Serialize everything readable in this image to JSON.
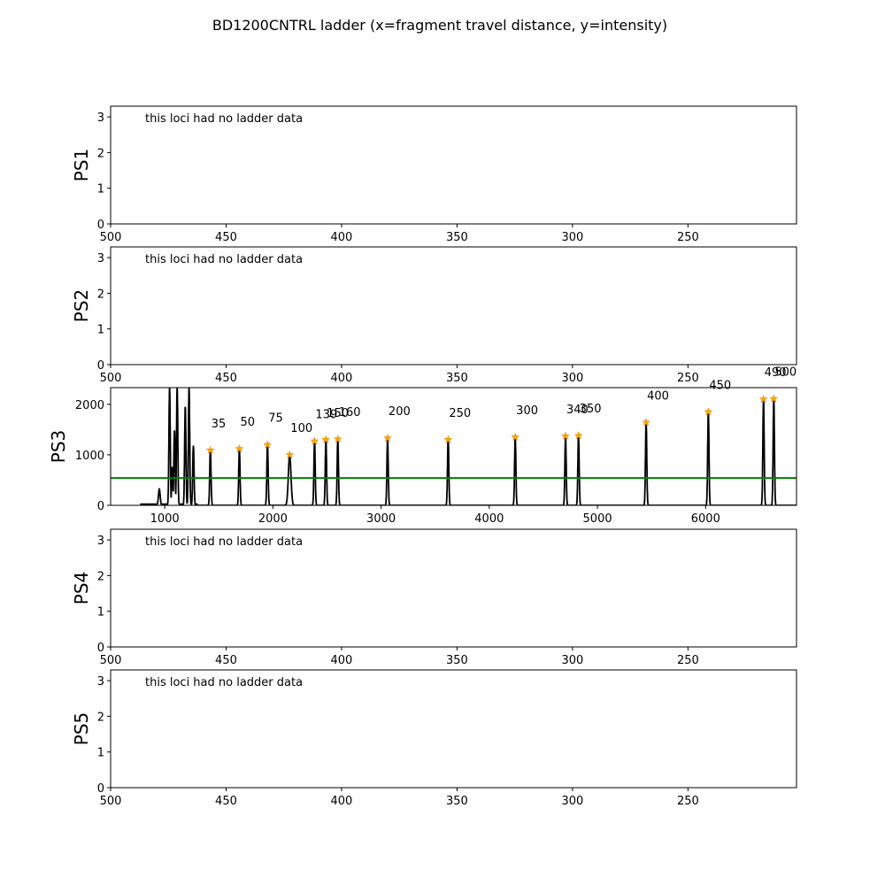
{
  "figure": {
    "title": "BD1200CNTRL ladder (x=fragment travel distance, y=intensity)"
  },
  "chart_data": [
    {
      "type": "line",
      "name": "PS1",
      "ylabel": "PS1",
      "empty": true,
      "annotation": "this loci had no ladder data",
      "xlim": [
        500,
        203
      ],
      "ylim": [
        0,
        3.3
      ],
      "xticks": [
        500,
        450,
        400,
        350,
        300,
        250
      ],
      "yticks": [
        0,
        1,
        2,
        3
      ]
    },
    {
      "type": "line",
      "name": "PS2",
      "ylabel": "PS2",
      "empty": true,
      "annotation": "this loci had no ladder data",
      "xlim": [
        500,
        203
      ],
      "ylim": [
        0,
        3.3
      ],
      "xticks": [
        500,
        450,
        400,
        350,
        300,
        250
      ],
      "yticks": [
        0,
        1,
        2,
        3
      ]
    },
    {
      "type": "line",
      "name": "PS3",
      "ylabel": "PS3",
      "empty": false,
      "xlim": [
        500,
        6840
      ],
      "ylim": [
        0,
        2330
      ],
      "xticks": [
        1000,
        2000,
        3000,
        4000,
        5000,
        6000
      ],
      "yticks": [
        0,
        1000,
        2000
      ],
      "threshold": 540,
      "peaks": [
        {
          "x": 1422,
          "y": 1090,
          "label": "35"
        },
        {
          "x": 1690,
          "y": 1120,
          "label": "50"
        },
        {
          "x": 1950,
          "y": 1200,
          "label": "75"
        },
        {
          "x": 2155,
          "y": 1000,
          "label": "100"
        },
        {
          "x": 2385,
          "y": 1270,
          "label": "139"
        },
        {
          "x": 2490,
          "y": 1300,
          "label": "150"
        },
        {
          "x": 2600,
          "y": 1310,
          "label": "160"
        },
        {
          "x": 3060,
          "y": 1330,
          "label": "200"
        },
        {
          "x": 3620,
          "y": 1300,
          "label": "250"
        },
        {
          "x": 4240,
          "y": 1350,
          "label": "300"
        },
        {
          "x": 4705,
          "y": 1370,
          "label": "340"
        },
        {
          "x": 4825,
          "y": 1380,
          "label": "350"
        },
        {
          "x": 5450,
          "y": 1640,
          "label": "400"
        },
        {
          "x": 6025,
          "y": 1850,
          "label": "450"
        },
        {
          "x": 6535,
          "y": 2100,
          "label": "490"
        },
        {
          "x": 6630,
          "y": 2110,
          "label": "500"
        }
      ],
      "noise": [
        {
          "x": 950,
          "y": 320
        },
        {
          "x": 1045,
          "y": 2330
        },
        {
          "x": 1070,
          "y": 760
        },
        {
          "x": 1090,
          "y": 1480
        },
        {
          "x": 1115,
          "y": 2330
        },
        {
          "x": 1190,
          "y": 1950
        },
        {
          "x": 1225,
          "y": 2330
        },
        {
          "x": 1265,
          "y": 1180
        }
      ]
    },
    {
      "type": "line",
      "name": "PS4",
      "ylabel": "PS4",
      "empty": true,
      "annotation": "this loci had no ladder data",
      "xlim": [
        500,
        203
      ],
      "ylim": [
        0,
        3.3
      ],
      "xticks": [
        500,
        450,
        400,
        350,
        300,
        250
      ],
      "yticks": [
        0,
        1,
        2,
        3
      ]
    },
    {
      "type": "line",
      "name": "PS5",
      "ylabel": "PS5",
      "empty": true,
      "annotation": "this loci had no ladder data",
      "xlim": [
        500,
        203
      ],
      "ylim": [
        0,
        3.3
      ],
      "xticks": [
        500,
        450,
        400,
        350,
        300,
        250
      ],
      "yticks": [
        0,
        1,
        2,
        3
      ]
    }
  ],
  "colors": {
    "trace": "#000000",
    "threshold": "#008000",
    "peak_marker": "#ffa500"
  }
}
